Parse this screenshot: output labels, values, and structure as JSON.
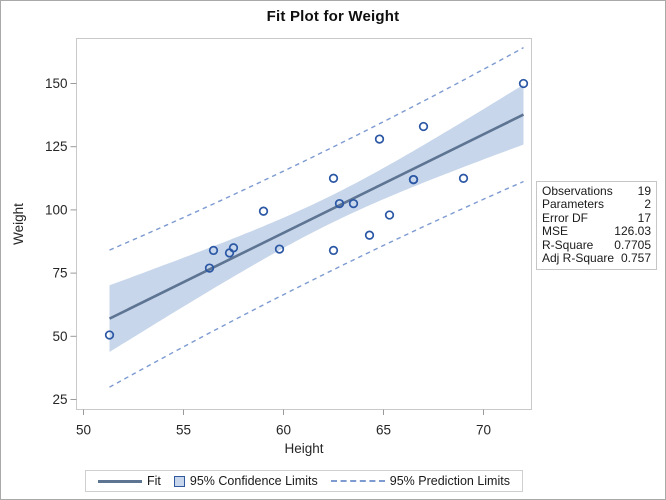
{
  "chart_data": {
    "type": "scatter",
    "title": "Fit Plot for Weight",
    "xlabel": "Height",
    "ylabel": "Weight",
    "x_ticks": [
      50,
      55,
      60,
      65,
      70
    ],
    "y_ticks": [
      25,
      50,
      75,
      100,
      125,
      150
    ],
    "xlim": [
      49.65,
      72.4
    ],
    "ylim": [
      21.05,
      167.8
    ],
    "grid": false,
    "points": [
      [
        69.0,
        112.5
      ],
      [
        56.5,
        84.0
      ],
      [
        65.3,
        98.0
      ],
      [
        62.8,
        102.5
      ],
      [
        63.5,
        102.5
      ],
      [
        57.3,
        83.0
      ],
      [
        59.8,
        84.5
      ],
      [
        62.5,
        112.5
      ],
      [
        62.5,
        84.0
      ],
      [
        59.0,
        99.5
      ],
      [
        51.3,
        50.5
      ],
      [
        64.3,
        90.0
      ],
      [
        56.3,
        77.0
      ],
      [
        66.5,
        112.0
      ],
      [
        72.0,
        150.0
      ],
      [
        64.8,
        128.0
      ],
      [
        67.0,
        133.0
      ],
      [
        57.5,
        85.0
      ],
      [
        66.5,
        112.0
      ]
    ],
    "fit": {
      "intercept": -143.0269,
      "slope": 3.899,
      "x_min": 51.3,
      "x_max": 72.0
    },
    "interval": {
      "mse": 126.0253,
      "n": 19,
      "mean_x": 62.3368,
      "sxx": 473.162,
      "t": 2.1098
    },
    "colors": {
      "band": "#c7d6ea",
      "fit_line": "#5d7492",
      "prediction_line": "#7d9ad1",
      "marker": "#2b57a5",
      "frame": "#c9c9c9",
      "tick": "#9a9a9a",
      "text": "#262626"
    }
  },
  "stats_table": {
    "rows": [
      {
        "label": "Observations",
        "value": "19"
      },
      {
        "label": "Parameters",
        "value": "2"
      },
      {
        "label": "Error DF",
        "value": "17"
      },
      {
        "label": "MSE",
        "value": "126.03"
      },
      {
        "label": "R-Square",
        "value": "0.7705"
      },
      {
        "label": "Adj R-Square",
        "value": "0.757"
      }
    ]
  },
  "legend": {
    "fit": "Fit",
    "confidence": "95% Confidence Limits",
    "prediction": "95% Prediction Limits"
  }
}
